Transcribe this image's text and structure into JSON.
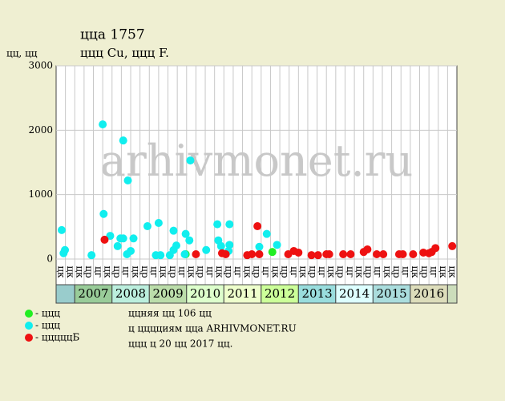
{
  "chart_data": {
    "type": "scatter",
    "title": "ццa 1757",
    "subtitle": "ццц Cu, ццц F.",
    "y_label": "цц, цц",
    "watermark": "arhivmonet.ru",
    "xlim": [
      0,
      43
    ],
    "ylim": [
      0,
      3000
    ],
    "yticks": [
      0,
      1000,
      2000,
      3000
    ],
    "grid": true,
    "quarter_labels": [
      "цк",
      "цк",
      "цк",
      "цр",
      "цг",
      "цк",
      "цр",
      "цг",
      "цк",
      "цр",
      "цг",
      "цк",
      "цр",
      "цг",
      "цк",
      "цр",
      "цг",
      "цк",
      "цр",
      "цг",
      "цк",
      "цр",
      "цг",
      "цк",
      "цр",
      "цг",
      "цк",
      "цр",
      "цг",
      "цк",
      "цр",
      "цг",
      "цк",
      "цр",
      "цг",
      "цк",
      "цр",
      "цг",
      "цк",
      "цр",
      "цг",
      "цк",
      "цк"
    ],
    "years": [
      "2007",
      "2008",
      "2009",
      "2010",
      "2011",
      "2012",
      "2013",
      "2014",
      "2015",
      "2016"
    ],
    "series": [
      {
        "name": "- ццц",
        "color": "#22ee22",
        "x": [
          13.9,
          23.2
        ],
        "values": [
          75,
          110
        ]
      },
      {
        "name": "- ццц",
        "color": "#11eeee",
        "x": [
          0.6,
          0.8,
          0.95,
          3.8,
          5.0,
          5.1,
          5.8,
          6.6,
          6.9,
          7.2,
          7.2,
          7.6,
          7.7,
          8.0,
          8.3,
          9.8,
          10.7,
          11.0,
          11.2,
          12.2,
          12.6,
          12.6,
          12.9,
          13.9,
          14.3,
          14.4,
          16.1,
          17.3,
          17.4,
          17.7,
          18.6,
          18.6,
          18.5,
          21.8,
          22.6,
          23.7,
          13.8
        ],
        "values": [
          450,
          90,
          140,
          60,
          2090,
          700,
          360,
          200,
          320,
          1840,
          320,
          75,
          1220,
          125,
          320,
          510,
          60,
          560,
          60,
          60,
          440,
          140,
          210,
          390,
          290,
          1530,
          140,
          540,
          290,
          200,
          220,
          540,
          125,
          190,
          390,
          220,
          75
        ]
      },
      {
        "name": "- цццццБ",
        "color": "#ee1111",
        "x": [
          5.2,
          15.0,
          17.8,
          18.2,
          20.5,
          21.0,
          21.6,
          21.8,
          24.9,
          25.5,
          26.0,
          27.4,
          28.1,
          29.0,
          29.3,
          30.8,
          31.6,
          33.0,
          33.4,
          34.4,
          35.1,
          36.8,
          37.2,
          38.3,
          39.4,
          40.0,
          40.3,
          40.7,
          42.5
        ],
        "values": [
          300,
          75,
          90,
          75,
          60,
          75,
          510,
          75,
          75,
          125,
          100,
          60,
          60,
          75,
          75,
          75,
          75,
          110,
          150,
          75,
          75,
          75,
          75,
          75,
          100,
          90,
          110,
          170,
          200
        ]
      }
    ],
    "notes": [
      "ццняя цц 106 цц",
      "ц цццциям ццa ARHIVMONET.RU",
      "ццц ц 20 цц 2017 цц."
    ]
  }
}
